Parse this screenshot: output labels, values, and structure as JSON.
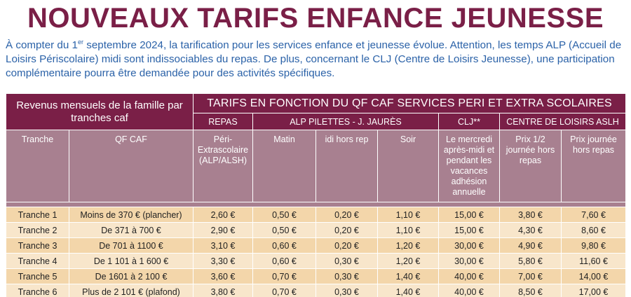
{
  "title": "NOUVEAUX TARIFS ENFANCE JEUNESSE",
  "intro": {
    "part1": "À compter du 1",
    "sup": "er",
    "part2": " septembre 2024, la tarification pour les services enfance et jeunesse évolue. Attention, les temps ALP (Accueil de Loisirs Périscolaire) midi sont indissociables du repas. De plus, concernant le CLJ (Centre de Loisirs Jeunesse), une participation complémentaire pourra être demandée pour des activités spécifiques."
  },
  "table": {
    "revenue_header": "Revenus mensuels de la famille par tranches caf",
    "tarifs_header": "TARIFS EN FONCTION DU QF CAF SERVICES PERI ET EXTRA SCOLAIRES",
    "groups": {
      "repas": "REPAS",
      "alp": "ALP PILETTES - J. JAURÈS",
      "clj": "CLJ**",
      "centre": "CENTRE DE LOISIRS ASLH"
    },
    "columns": {
      "tranche": "Tranche",
      "qf": "QF CAF",
      "peri": "Péri- Extrascolaire (ALP/ALSH)",
      "matin": "Matin",
      "midi": "idi hors rep",
      "soir": "Soir",
      "clj": "Le mercredi après-midi et pendant les vacances adhésion annuelle",
      "demi": "Prix 1/2 journée hors repas",
      "journee": "Prix journée hors repas"
    },
    "rows": [
      [
        "Tranche 1",
        "Moins de 370 € (plancher)",
        "2,60 €",
        "0,50 €",
        "0,20 €",
        "1,10 €",
        "15,00 €",
        "3,80 €",
        "7,60 €"
      ],
      [
        "Tranche 2",
        "De 371 à 700 €",
        "2,90 €",
        "0,50 €",
        "0,20 €",
        "1,10 €",
        "15,00 €",
        "4,30 €",
        "8,60 €"
      ],
      [
        "Tranche 3",
        "De 701 à 1100 €",
        "3,10 €",
        "0,60 €",
        "0,20 €",
        "1,20 €",
        "30,00 €",
        "4,90 €",
        "9,80 €"
      ],
      [
        "Tranche 4",
        "De 1 101 à 1 600 €",
        "3,30 €",
        "0,60 €",
        "0,30 €",
        "1,20 €",
        "30,00 €",
        "5,80 €",
        "11,60 €"
      ],
      [
        "Tranche 5",
        "De 1601 à 2 100 €",
        "3,60 €",
        "0,70 €",
        "0,30 €",
        "1,40 €",
        "40,00 €",
        "7,00 €",
        "14,00 €"
      ],
      [
        "Tranche 6",
        "Plus de 2 101 € (plafond)",
        "3,80 €",
        "0,70 €",
        "0,30 €",
        "1,40 €",
        "40,00 €",
        "8,50 €",
        "17,00 €"
      ]
    ]
  },
  "colors": {
    "primary": "#7a1f47",
    "secondary": "#a88090",
    "text_blue": "#2b62a8",
    "row_odd": "#f3d6aa",
    "row_even": "#f8e6cb"
  }
}
